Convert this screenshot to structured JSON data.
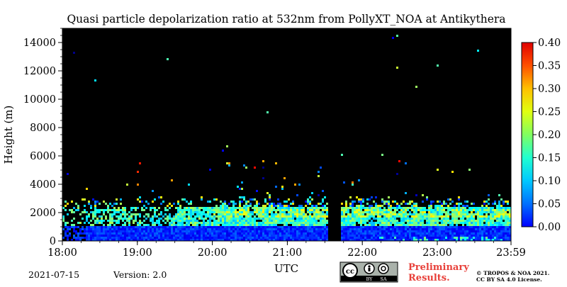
{
  "chart_data": {
    "type": "heatmap",
    "title": "Quasi particle depolarization ratio at 532nm from PollyXT_NOA at Antikythera",
    "xlabel": "UTC",
    "ylabel": "Height (m)",
    "x_ticks": [
      "18:00",
      "19:00",
      "20:00",
      "21:00",
      "22:00",
      "23:00",
      "23:59"
    ],
    "x_tick_hours": [
      18,
      19,
      20,
      21,
      22,
      23,
      23.983
    ],
    "xlim_hours": [
      18,
      23.983
    ],
    "y_ticks": [
      0,
      2000,
      4000,
      6000,
      8000,
      10000,
      12000,
      14000
    ],
    "ylim": [
      0,
      15000
    ],
    "colorbar": {
      "ticks": [
        "0.00",
        "0.05",
        "0.10",
        "0.15",
        "0.20",
        "0.25",
        "0.30",
        "0.35",
        "0.40"
      ],
      "range": [
        0,
        0.4
      ],
      "colormap": "jet"
    },
    "layers": [
      {
        "name_internal": "near-surface",
        "height_range_m": [
          0,
          1200
        ],
        "value_range": [
          0.04,
          0.09
        ]
      },
      {
        "name_internal": "aerosol-layer",
        "height_range_m": [
          1200,
          2500
        ],
        "value_range": [
          0.12,
          0.22
        ]
      },
      {
        "name_internal": "layer-top",
        "height_range_m": [
          2500,
          3200
        ],
        "value_range": [
          0.05,
          0.25
        ]
      }
    ],
    "data_gap_hours": [
      21.52,
      21.7
    ]
  },
  "footer": {
    "date": "2021-07-15",
    "version": "Version: 2.0",
    "preliminary_line1": "Preliminary",
    "preliminary_line2": "Results.",
    "copyright_line1": "© TROPOS & NOA 2021.",
    "copyright_line2": "CC BY SA 4.0 License.",
    "license_badge_by": "BY",
    "license_badge_sa": "SA",
    "license_badge_cc": "cc"
  },
  "colors": {
    "plot_background": "#000000",
    "preliminary_text": "#e8403a"
  }
}
